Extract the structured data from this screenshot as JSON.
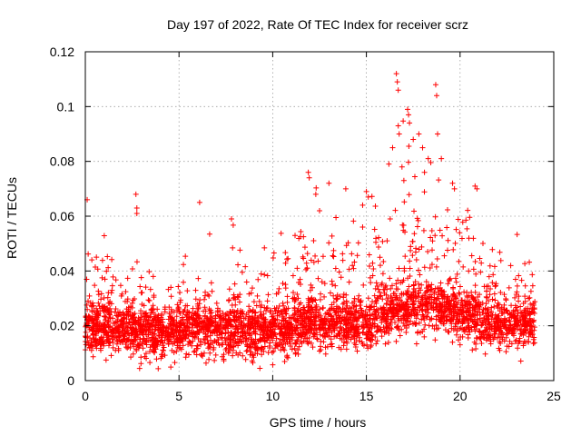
{
  "chart_data": {
    "type": "scatter",
    "title": "Day 197 of 2022, Rate Of TEC Index for receiver scrz",
    "xlabel": "GPS time / hours",
    "ylabel": "ROTI / TECUs",
    "xlim": [
      0,
      25
    ],
    "ylim": [
      0,
      0.12
    ],
    "xticks": [
      0,
      5,
      10,
      15,
      20,
      25
    ],
    "yticks": [
      0,
      0.02,
      0.04,
      0.06,
      0.08,
      0.1,
      0.12
    ],
    "ytick_labels": [
      "0",
      "0.02",
      "0.04",
      "0.06",
      "0.08",
      "0.1",
      "0.12"
    ],
    "grid": true,
    "marker": "plus",
    "color": "#ff0000",
    "series": [
      {
        "name": "ROTI",
        "x_range": [
          0,
          24
        ],
        "envelope_hours": [
          0,
          1,
          2,
          3,
          4,
          5,
          6,
          7,
          8,
          9,
          10,
          11,
          12,
          13,
          14,
          15,
          16,
          17,
          18,
          19,
          20,
          21,
          22,
          23,
          24
        ],
        "envelope_median": [
          0.018,
          0.019,
          0.018,
          0.018,
          0.017,
          0.018,
          0.019,
          0.018,
          0.018,
          0.017,
          0.018,
          0.02,
          0.021,
          0.021,
          0.02,
          0.021,
          0.024,
          0.026,
          0.027,
          0.026,
          0.024,
          0.022,
          0.021,
          0.02,
          0.02
        ],
        "envelope_upper": [
          0.035,
          0.038,
          0.036,
          0.036,
          0.034,
          0.036,
          0.038,
          0.036,
          0.038,
          0.036,
          0.035,
          0.045,
          0.05,
          0.048,
          0.045,
          0.05,
          0.06,
          0.065,
          0.06,
          0.058,
          0.052,
          0.045,
          0.042,
          0.04,
          0.045
        ],
        "outliers": [
          {
            "x": 0.1,
            "y": 0.066
          },
          {
            "x": 2.7,
            "y": 0.068
          },
          {
            "x": 2.75,
            "y": 0.063
          },
          {
            "x": 2.75,
            "y": 0.061
          },
          {
            "x": 6.1,
            "y": 0.065
          },
          {
            "x": 7.8,
            "y": 0.059
          },
          {
            "x": 11.9,
            "y": 0.076
          },
          {
            "x": 11.95,
            "y": 0.074
          },
          {
            "x": 12.3,
            "y": 0.068
          },
          {
            "x": 13.0,
            "y": 0.072
          },
          {
            "x": 13.9,
            "y": 0.07
          },
          {
            "x": 15.0,
            "y": 0.069
          },
          {
            "x": 15.1,
            "y": 0.067
          },
          {
            "x": 16.2,
            "y": 0.079
          },
          {
            "x": 16.4,
            "y": 0.085
          },
          {
            "x": 16.6,
            "y": 0.112
          },
          {
            "x": 16.65,
            "y": 0.109
          },
          {
            "x": 16.7,
            "y": 0.106
          },
          {
            "x": 16.7,
            "y": 0.093
          },
          {
            "x": 16.75,
            "y": 0.09
          },
          {
            "x": 17.2,
            "y": 0.099
          },
          {
            "x": 17.25,
            "y": 0.097
          },
          {
            "x": 17.3,
            "y": 0.094
          },
          {
            "x": 17.5,
            "y": 0.088
          },
          {
            "x": 17.8,
            "y": 0.09
          },
          {
            "x": 18.0,
            "y": 0.085
          },
          {
            "x": 18.3,
            "y": 0.081
          },
          {
            "x": 18.7,
            "y": 0.108
          },
          {
            "x": 18.75,
            "y": 0.104
          },
          {
            "x": 18.8,
            "y": 0.09
          },
          {
            "x": 19.0,
            "y": 0.081
          },
          {
            "x": 19.6,
            "y": 0.072
          },
          {
            "x": 19.7,
            "y": 0.07
          },
          {
            "x": 20.8,
            "y": 0.071
          },
          {
            "x": 20.9,
            "y": 0.07
          },
          {
            "x": 16.9,
            "y": 0.078
          },
          {
            "x": 17.0,
            "y": 0.073
          },
          {
            "x": 18.1,
            "y": 0.076
          },
          {
            "x": 14.8,
            "y": 0.064
          },
          {
            "x": 12.5,
            "y": 0.062
          }
        ]
      }
    ]
  }
}
